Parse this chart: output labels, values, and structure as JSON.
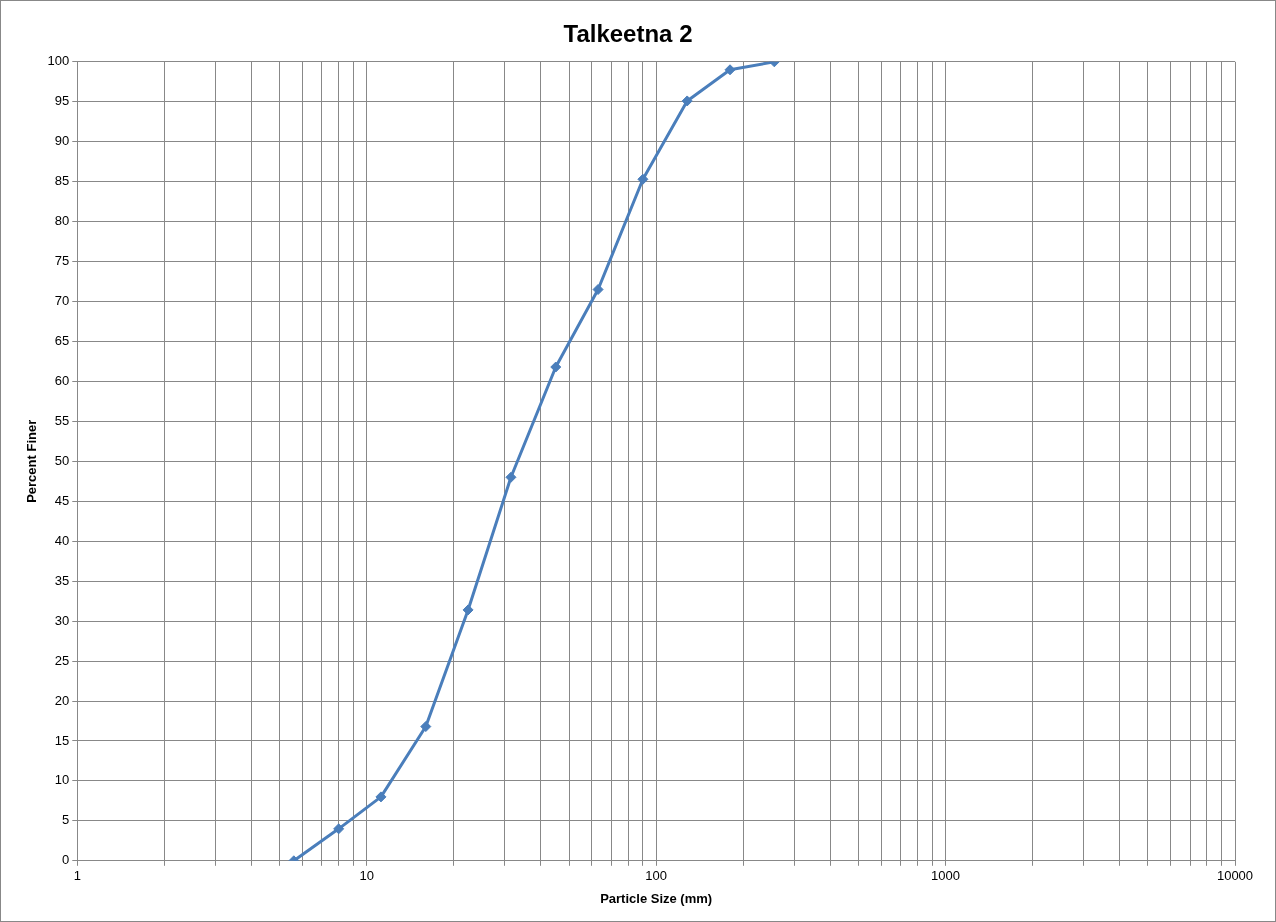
{
  "chart_data": {
    "type": "line",
    "title": "Talkeetna 2",
    "xlabel": "Particle Size (mm)",
    "ylabel": "Percent Finer",
    "log": "x",
    "x": [
      5.6,
      8,
      11.2,
      16,
      22.4,
      31.5,
      45,
      63,
      90,
      128,
      180,
      256
    ],
    "series": [
      {
        "color": "#4a7ebb",
        "values": [
          0,
          4,
          8,
          16.8,
          31.4,
          48,
          61.8,
          71.5,
          85.3,
          95.1,
          99,
          100
        ]
      }
    ],
    "xlim": [
      1,
      10000
    ],
    "xticks": [
      1,
      {
        "value": 2,
        "label": null
      },
      {
        "value": 3,
        "label": null
      },
      {
        "value": 4,
        "label": null
      },
      {
        "value": 5,
        "label": null
      },
      {
        "value": 6,
        "label": null
      },
      {
        "value": 7,
        "label": null
      },
      {
        "value": 8,
        "label": null
      },
      {
        "value": 9,
        "label": null
      },
      10,
      {
        "value": 20,
        "label": null
      },
      {
        "value": 30,
        "label": null
      },
      {
        "value": 40,
        "label": null
      },
      {
        "value": 50,
        "label": null
      },
      {
        "value": 60,
        "label": null
      },
      {
        "value": 70,
        "label": null
      },
      {
        "value": 80,
        "label": null
      },
      {
        "value": 90,
        "label": null
      },
      100,
      {
        "value": 200,
        "label": null
      },
      {
        "value": 300,
        "label": null
      },
      {
        "value": 400,
        "label": null
      },
      {
        "value": 500,
        "label": null
      },
      {
        "value": 600,
        "label": null
      },
      {
        "value": 700,
        "label": null
      },
      {
        "value": 800,
        "label": null
      },
      {
        "value": 900,
        "label": null
      },
      1000,
      {
        "value": 2000,
        "label": null
      },
      {
        "value": 3000,
        "label": null
      },
      {
        "value": 4000,
        "label": null
      },
      {
        "value": 5000,
        "label": null
      },
      {
        "value": 6000,
        "label": null
      },
      {
        "value": 7000,
        "label": null
      },
      {
        "value": 8000,
        "label": null
      },
      {
        "value": 9000,
        "label": null
      },
      10000
    ],
    "ylim": [
      0,
      100
    ],
    "yticks": [
      0,
      5,
      10,
      15,
      20,
      25,
      30,
      35,
      40,
      45,
      50,
      55,
      60,
      65,
      70,
      75,
      80,
      85,
      90,
      95,
      100
    ],
    "grid": true,
    "legend": false,
    "marker": "diamond",
    "line_style": "solid"
  }
}
